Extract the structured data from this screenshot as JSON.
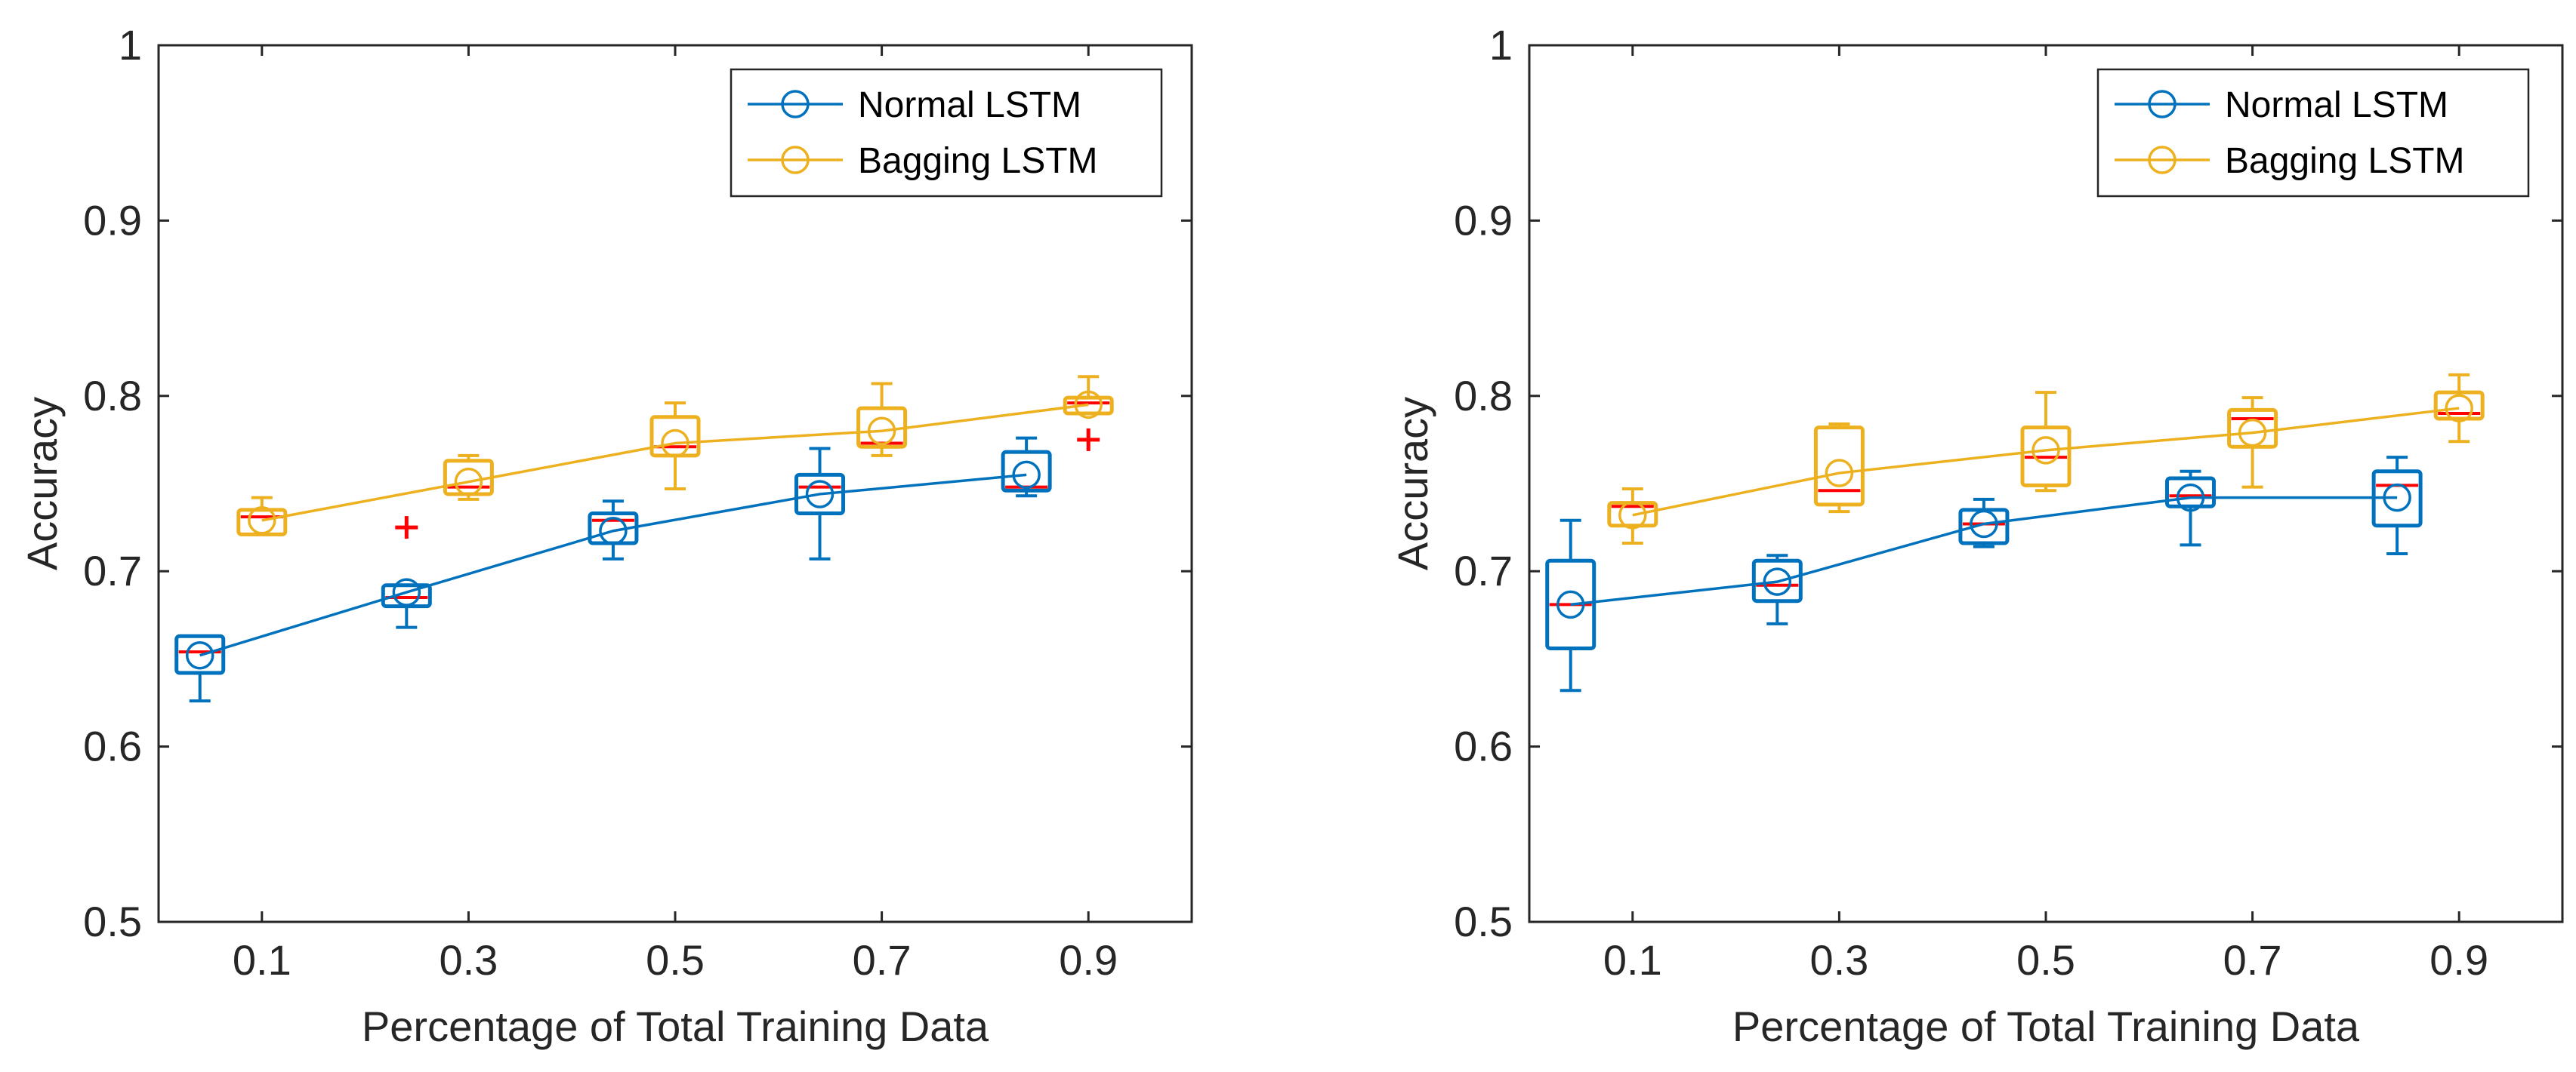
{
  "colors": {
    "normal": "#0072BD",
    "bagging": "#EDB120",
    "median": "#FF0000",
    "outlier": "#FF0000",
    "axis": "#262626"
  },
  "chart_data": [
    {
      "type": "boxplot+line",
      "xlabel": "Percentage of Total Training Data",
      "ylabel": "Accuracy",
      "ylim": [
        0.5,
        1.0
      ],
      "xlim": [
        0.0,
        1.0
      ],
      "xticks": [
        0.1,
        0.3,
        0.5,
        0.7,
        0.9
      ],
      "xtick_labels": [
        "0.1",
        "0.3",
        "0.5",
        "0.7",
        "0.9"
      ],
      "yticks": [
        0.5,
        0.6,
        0.7,
        0.8,
        0.9,
        1.0
      ],
      "ytick_labels": [
        "0.5",
        "0.6",
        "0.7",
        "0.8",
        "0.9",
        "1"
      ],
      "legend": [
        "Normal LSTM",
        "Bagging LSTM"
      ],
      "legend_location": "top-right",
      "series": [
        {
          "name": "Normal LSTM",
          "key": "normal",
          "x": [
            0.04,
            0.24,
            0.44,
            0.64,
            0.84
          ],
          "mean": [
            0.652,
            0.688,
            0.723,
            0.744,
            0.755
          ],
          "boxes": [
            {
              "whisker_low": 0.626,
              "q1": 0.642,
              "median": 0.654,
              "q3": 0.663,
              "whisker_high": 0.663,
              "outliers": []
            },
            {
              "whisker_low": 0.668,
              "q1": 0.68,
              "median": 0.685,
              "q3": 0.692,
              "whisker_high": 0.692,
              "outliers": [
                0.725
              ]
            },
            {
              "whisker_low": 0.707,
              "q1": 0.716,
              "median": 0.729,
              "q3": 0.733,
              "whisker_high": 0.74,
              "outliers": []
            },
            {
              "whisker_low": 0.707,
              "q1": 0.733,
              "median": 0.748,
              "q3": 0.755,
              "whisker_high": 0.77,
              "outliers": []
            },
            {
              "whisker_low": 0.743,
              "q1": 0.746,
              "median": 0.748,
              "q3": 0.768,
              "whisker_high": 0.776,
              "outliers": []
            }
          ]
        },
        {
          "name": "Bagging LSTM",
          "key": "bagging",
          "x": [
            0.1,
            0.3,
            0.5,
            0.7,
            0.9
          ],
          "mean": [
            0.729,
            0.751,
            0.773,
            0.78,
            0.795
          ],
          "boxes": [
            {
              "whisker_low": 0.721,
              "q1": 0.721,
              "median": 0.731,
              "q3": 0.735,
              "whisker_high": 0.742,
              "outliers": []
            },
            {
              "whisker_low": 0.741,
              "q1": 0.744,
              "median": 0.748,
              "q3": 0.763,
              "whisker_high": 0.766,
              "outliers": []
            },
            {
              "whisker_low": 0.747,
              "q1": 0.766,
              "median": 0.771,
              "q3": 0.788,
              "whisker_high": 0.796,
              "outliers": []
            },
            {
              "whisker_low": 0.766,
              "q1": 0.771,
              "median": 0.773,
              "q3": 0.793,
              "whisker_high": 0.807,
              "outliers": []
            },
            {
              "whisker_low": 0.79,
              "q1": 0.79,
              "median": 0.796,
              "q3": 0.799,
              "whisker_high": 0.811,
              "outliers": [
                0.775
              ]
            }
          ]
        }
      ]
    },
    {
      "type": "boxplot+line",
      "xlabel": "Percentage of Total Training Data",
      "ylabel": "Accuracy",
      "ylim": [
        0.5,
        1.0
      ],
      "xlim": [
        0.0,
        1.0
      ],
      "xticks": [
        0.1,
        0.3,
        0.5,
        0.7,
        0.9
      ],
      "xtick_labels": [
        "0.1",
        "0.3",
        "0.5",
        "0.7",
        "0.9"
      ],
      "yticks": [
        0.5,
        0.6,
        0.7,
        0.8,
        0.9,
        1.0
      ],
      "ytick_labels": [
        "0.5",
        "0.6",
        "0.7",
        "0.8",
        "0.9",
        "1"
      ],
      "legend": [
        "Normal LSTM",
        "Bagging LSTM"
      ],
      "legend_location": "top-right",
      "series": [
        {
          "name": "Normal LSTM",
          "key": "normal",
          "x": [
            0.04,
            0.24,
            0.44,
            0.64,
            0.84
          ],
          "mean": [
            0.681,
            0.694,
            0.727,
            0.742,
            0.742
          ],
          "boxes": [
            {
              "whisker_low": 0.632,
              "q1": 0.656,
              "median": 0.681,
              "q3": 0.706,
              "whisker_high": 0.729,
              "outliers": []
            },
            {
              "whisker_low": 0.67,
              "q1": 0.683,
              "median": 0.692,
              "q3": 0.706,
              "whisker_high": 0.709,
              "outliers": []
            },
            {
              "whisker_low": 0.714,
              "q1": 0.716,
              "median": 0.727,
              "q3": 0.735,
              "whisker_high": 0.741,
              "outliers": []
            },
            {
              "whisker_low": 0.715,
              "q1": 0.737,
              "median": 0.743,
              "q3": 0.753,
              "whisker_high": 0.757,
              "outliers": []
            },
            {
              "whisker_low": 0.71,
              "q1": 0.726,
              "median": 0.749,
              "q3": 0.757,
              "whisker_high": 0.765,
              "outliers": []
            }
          ]
        },
        {
          "name": "Bagging LSTM",
          "key": "bagging",
          "x": [
            0.1,
            0.3,
            0.5,
            0.7,
            0.9
          ],
          "mean": [
            0.732,
            0.756,
            0.769,
            0.779,
            0.793
          ],
          "boxes": [
            {
              "whisker_low": 0.716,
              "q1": 0.726,
              "median": 0.737,
              "q3": 0.739,
              "whisker_high": 0.747,
              "outliers": []
            },
            {
              "whisker_low": 0.734,
              "q1": 0.738,
              "median": 0.746,
              "q3": 0.782,
              "whisker_high": 0.784,
              "outliers": []
            },
            {
              "whisker_low": 0.746,
              "q1": 0.749,
              "median": 0.765,
              "q3": 0.782,
              "whisker_high": 0.802,
              "outliers": []
            },
            {
              "whisker_low": 0.748,
              "q1": 0.771,
              "median": 0.787,
              "q3": 0.792,
              "whisker_high": 0.799,
              "outliers": []
            },
            {
              "whisker_low": 0.774,
              "q1": 0.787,
              "median": 0.79,
              "q3": 0.802,
              "whisker_high": 0.812,
              "outliers": []
            }
          ]
        }
      ]
    }
  ]
}
